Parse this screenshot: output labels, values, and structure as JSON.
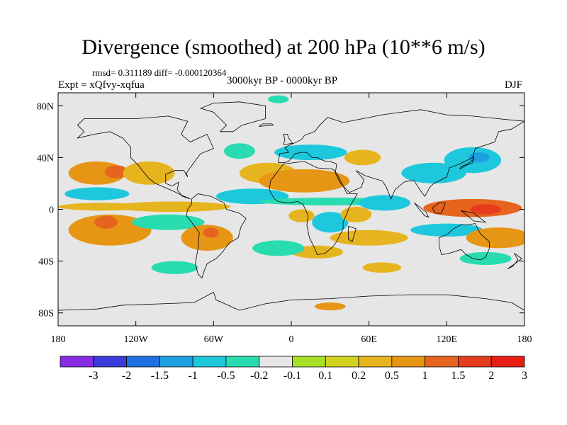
{
  "header": {
    "title": "Divergence (smoothed) at 200 hPa (10**6 m/s)",
    "stats": "rmsd= 0.311189 diff= -0.000120364",
    "experiment": "Expt = xQfvy-xqfua",
    "period": "3000kyr BP - 0000kyr BP",
    "season": "DJF"
  },
  "chart_data": {
    "type": "heatmap",
    "title": "Divergence (smoothed) at 200 hPa (10**6 m/s)",
    "variable": "Divergence (smoothed) at 200 hPa",
    "units": "10**6 m/s",
    "projection": "cylindrical equidistant",
    "xlim": [
      -180,
      180
    ],
    "ylim": [
      -90,
      90
    ],
    "x_ticks": [
      {
        "value": -180,
        "label": "180"
      },
      {
        "value": -120,
        "label": "120W"
      },
      {
        "value": -60,
        "label": "60W"
      },
      {
        "value": 0,
        "label": "0"
      },
      {
        "value": 60,
        "label": "60E"
      },
      {
        "value": 120,
        "label": "120E"
      },
      {
        "value": 180,
        "label": "180"
      }
    ],
    "y_ticks": [
      {
        "value": 80,
        "label": "80N"
      },
      {
        "value": 40,
        "label": "40N"
      },
      {
        "value": 0,
        "label": "0"
      },
      {
        "value": -40,
        "label": "40S"
      },
      {
        "value": -80,
        "label": "80S"
      }
    ],
    "levels": [
      -3,
      -2,
      -1.5,
      -1,
      -0.5,
      -0.2,
      -0.1,
      0.1,
      0.2,
      0.5,
      1,
      1.5,
      2,
      3
    ],
    "colors": [
      "#8a2be6",
      "#3b3bdc",
      "#1e6fe0",
      "#1ea0e0",
      "#1ec8dc",
      "#28dcb0",
      "#e6e6e6",
      "#a8e028",
      "#d2d21e",
      "#e6b41e",
      "#e69614",
      "#e6641e",
      "#e63c1e",
      "#e61e14"
    ],
    "blobs": [
      {
        "lon": -150,
        "lat": 28,
        "rlon": 22,
        "rlat": 9,
        "value": 0.6
      },
      {
        "lon": -135,
        "lat": 29,
        "rlon": 9,
        "rlat": 5,
        "value": 1.0
      },
      {
        "lon": -110,
        "lat": 28,
        "rlon": 20,
        "rlat": 9,
        "value": 0.3
      },
      {
        "lon": -150,
        "lat": 12,
        "rlon": 25,
        "rlat": 5,
        "value": -0.6
      },
      {
        "lon": -140,
        "lat": -16,
        "rlon": 32,
        "rlat": 12,
        "value": 0.5
      },
      {
        "lon": -143,
        "lat": -10,
        "rlon": 9,
        "rlat": 5,
        "value": 1.2
      },
      {
        "lon": -92,
        "lat": 2,
        "rlon": 45,
        "rlat": 4,
        "value": 0.3
      },
      {
        "lon": -145,
        "lat": 2,
        "rlon": 35,
        "rlat": 3,
        "value": 0.25
      },
      {
        "lon": -95,
        "lat": -10,
        "rlon": 28,
        "rlat": 6,
        "value": -0.5
      },
      {
        "lon": -65,
        "lat": -22,
        "rlon": 20,
        "rlat": 10,
        "value": 0.5
      },
      {
        "lon": -62,
        "lat": -18,
        "rlon": 6,
        "rlat": 4,
        "value": 1.0
      },
      {
        "lon": -30,
        "lat": 10,
        "rlon": 28,
        "rlat": 6,
        "value": -0.6
      },
      {
        "lon": -18,
        "lat": 28,
        "rlon": 22,
        "rlat": 8,
        "value": 0.4
      },
      {
        "lon": 10,
        "lat": 22,
        "rlon": 35,
        "rlat": 9,
        "value": 0.5
      },
      {
        "lon": -40,
        "lat": 45,
        "rlon": 12,
        "rlat": 6,
        "value": -0.5
      },
      {
        "lon": 15,
        "lat": 44,
        "rlon": 28,
        "rlat": 6,
        "value": -0.6
      },
      {
        "lon": 55,
        "lat": 40,
        "rlon": 14,
        "rlat": 6,
        "value": 0.3
      },
      {
        "lon": 30,
        "lat": 6,
        "rlon": 55,
        "rlat": 3,
        "value": -0.5
      },
      {
        "lon": 8,
        "lat": -5,
        "rlon": 10,
        "rlat": 5,
        "value": 0.4
      },
      {
        "lon": 30,
        "lat": -10,
        "rlon": 14,
        "rlat": 8,
        "value": -0.6
      },
      {
        "lon": 50,
        "lat": -4,
        "rlon": 12,
        "rlat": 6,
        "value": 0.3
      },
      {
        "lon": 72,
        "lat": 5,
        "rlon": 20,
        "rlat": 6,
        "value": -0.8
      },
      {
        "lon": 110,
        "lat": 28,
        "rlon": 25,
        "rlat": 8,
        "value": -0.7
      },
      {
        "lon": 140,
        "lat": 38,
        "rlon": 22,
        "rlat": 10,
        "value": -0.9
      },
      {
        "lon": 145,
        "lat": 40,
        "rlon": 8,
        "rlat": 4,
        "value": -1.2
      },
      {
        "lon": 140,
        "lat": 1,
        "rlon": 38,
        "rlat": 7,
        "value": 1.0
      },
      {
        "lon": 150,
        "lat": 0,
        "rlon": 12,
        "rlat": 4,
        "value": 1.5
      },
      {
        "lon": 120,
        "lat": -16,
        "rlon": 28,
        "rlat": 5,
        "value": -0.8
      },
      {
        "lon": 160,
        "lat": -22,
        "rlon": 25,
        "rlat": 8,
        "value": 0.5
      },
      {
        "lon": 60,
        "lat": -22,
        "rlon": 30,
        "rlat": 6,
        "value": 0.3
      },
      {
        "lon": 20,
        "lat": -33,
        "rlon": 20,
        "rlat": 5,
        "value": 0.4
      },
      {
        "lon": -10,
        "lat": -30,
        "rlon": 20,
        "rlat": 6,
        "value": -0.5
      },
      {
        "lon": -90,
        "lat": -45,
        "rlon": 18,
        "rlat": 5,
        "value": -0.4
      },
      {
        "lon": 70,
        "lat": -45,
        "rlon": 15,
        "rlat": 4,
        "value": 0.3
      },
      {
        "lon": 150,
        "lat": -38,
        "rlon": 20,
        "rlat": 5,
        "value": -0.4
      },
      {
        "lon": -10,
        "lat": 85,
        "rlon": 8,
        "rlat": 3,
        "value": -0.4
      },
      {
        "lon": 30,
        "lat": -75,
        "rlon": 12,
        "rlat": 3,
        "value": 0.6
      }
    ],
    "coastlines": [
      [
        [
          -165,
          65
        ],
        [
          -160,
          70
        ],
        [
          -140,
          70
        ],
        [
          -120,
          70
        ],
        [
          -95,
          72
        ],
        [
          -80,
          68
        ],
        [
          -85,
          58
        ],
        [
          -78,
          52
        ],
        [
          -65,
          58
        ],
        [
          -60,
          47
        ],
        [
          -70,
          43
        ],
        [
          -76,
          35
        ],
        [
          -81,
          28
        ],
        [
          -80,
          25
        ],
        [
          -83,
          30
        ],
        [
          -90,
          30
        ],
        [
          -97,
          27
        ],
        [
          -97,
          20
        ],
        [
          -92,
          18
        ],
        [
          -87,
          21
        ],
        [
          -88,
          15
        ],
        [
          -84,
          10
        ],
        [
          -78,
          8
        ],
        [
          -80,
          9
        ],
        [
          -85,
          11
        ],
        [
          -91,
          14
        ],
        [
          -105,
          20
        ],
        [
          -110,
          24
        ],
        [
          -115,
          30
        ],
        [
          -118,
          34
        ],
        [
          -124,
          40
        ],
        [
          -124,
          48
        ],
        [
          -130,
          55
        ],
        [
          -140,
          60
        ],
        [
          -152,
          58
        ],
        [
          -165,
          55
        ],
        [
          -160,
          60
        ],
        [
          -165,
          65
        ]
      ],
      [
        [
          -77,
          8
        ],
        [
          -72,
          12
        ],
        [
          -62,
          10
        ],
        [
          -52,
          5
        ],
        [
          -50,
          0
        ],
        [
          -40,
          -3
        ],
        [
          -35,
          -7
        ],
        [
          -39,
          -14
        ],
        [
          -41,
          -22
        ],
        [
          -48,
          -26
        ],
        [
          -53,
          -33
        ],
        [
          -58,
          -38
        ],
        [
          -65,
          -42
        ],
        [
          -67,
          -47
        ],
        [
          -69,
          -53
        ],
        [
          -72,
          -50
        ],
        [
          -74,
          -42
        ],
        [
          -72,
          -30
        ],
        [
          -71,
          -18
        ],
        [
          -77,
          -10
        ],
        [
          -81,
          -5
        ],
        [
          -80,
          0
        ],
        [
          -77,
          4
        ],
        [
          -77,
          8
        ]
      ],
      [
        [
          -17,
          15
        ],
        [
          -16,
          22
        ],
        [
          -10,
          30
        ],
        [
          -6,
          35
        ],
        [
          10,
          37
        ],
        [
          20,
          32
        ],
        [
          32,
          31
        ],
        [
          35,
          28
        ],
        [
          43,
          12
        ],
        [
          51,
          12
        ],
        [
          45,
          2
        ],
        [
          40,
          -10
        ],
        [
          40,
          -15
        ],
        [
          35,
          -25
        ],
        [
          32,
          -29
        ],
        [
          26,
          -34
        ],
        [
          20,
          -35
        ],
        [
          18,
          -30
        ],
        [
          14,
          -22
        ],
        [
          12,
          -12
        ],
        [
          13,
          -5
        ],
        [
          9,
          4
        ],
        [
          5,
          6
        ],
        [
          -3,
          5
        ],
        [
          -10,
          6
        ],
        [
          -13,
          8
        ],
        [
          -17,
          15
        ]
      ],
      [
        [
          -10,
          36
        ],
        [
          -9,
          43
        ],
        [
          -2,
          44
        ],
        [
          -5,
          48
        ],
        [
          2,
          51
        ],
        [
          8,
          54
        ],
        [
          10,
          57
        ],
        [
          18,
          60
        ],
        [
          22,
          65
        ],
        [
          28,
          71
        ],
        [
          40,
          67
        ],
        [
          55,
          70
        ],
        [
          70,
          73
        ],
        [
          85,
          75
        ],
        [
          100,
          77
        ],
        [
          120,
          73
        ],
        [
          140,
          72
        ],
        [
          160,
          70
        ],
        [
          180,
          68
        ],
        [
          170,
          62
        ],
        [
          160,
          60
        ],
        [
          157,
          52
        ],
        [
          142,
          47
        ],
        [
          140,
          40
        ],
        [
          130,
          35
        ],
        [
          122,
          32
        ],
        [
          120,
          25
        ],
        [
          110,
          20
        ],
        [
          107,
          17
        ],
        [
          103,
          10
        ],
        [
          100,
          14
        ],
        [
          98,
          17
        ],
        [
          95,
          22
        ],
        [
          91,
          22
        ],
        [
          87,
          21
        ],
        [
          80,
          15
        ],
        [
          77,
          8
        ],
        [
          73,
          18
        ],
        [
          70,
          22
        ],
        [
          60,
          25
        ],
        [
          57,
          26
        ],
        [
          50,
          30
        ],
        [
          56,
          23
        ],
        [
          54,
          17
        ],
        [
          45,
          13
        ],
        [
          43,
          15
        ],
        [
          38,
          20
        ],
        [
          34,
          28
        ],
        [
          35,
          35
        ],
        [
          30,
          37
        ],
        [
          27,
          37
        ],
        [
          24,
          38
        ],
        [
          20,
          40
        ],
        [
          16,
          40
        ],
        [
          12,
          44
        ],
        [
          8,
          44
        ],
        [
          3,
          43
        ],
        [
          -2,
          37
        ],
        [
          -6,
          36
        ],
        [
          -10,
          36
        ]
      ],
      [
        [
          114,
          -22
        ],
        [
          114,
          -28
        ],
        [
          116,
          -35
        ],
        [
          122,
          -34
        ],
        [
          131,
          -31
        ],
        [
          135,
          -35
        ],
        [
          140,
          -38
        ],
        [
          146,
          -39
        ],
        [
          150,
          -37
        ],
        [
          153,
          -30
        ],
        [
          153,
          -25
        ],
        [
          146,
          -19
        ],
        [
          142,
          -11
        ],
        [
          136,
          -12
        ],
        [
          131,
          -12
        ],
        [
          125,
          -15
        ],
        [
          121,
          -19
        ],
        [
          114,
          -22
        ]
      ],
      [
        [
          -55,
          60
        ],
        [
          -45,
          60
        ],
        [
          -38,
          65
        ],
        [
          -20,
          70
        ],
        [
          -20,
          80
        ],
        [
          -40,
          83
        ],
        [
          -60,
          82
        ],
        [
          -70,
          78
        ],
        [
          -60,
          75
        ],
        [
          -55,
          70
        ],
        [
          -50,
          65
        ],
        [
          -55,
          60
        ]
      ],
      [
        [
          -6,
          50
        ],
        [
          1,
          51
        ],
        [
          -2,
          55
        ],
        [
          -3,
          58
        ],
        [
          -6,
          58
        ],
        [
          -5,
          54
        ],
        [
          -6,
          50
        ]
      ],
      [
        [
          130,
          31
        ],
        [
          135,
          34
        ],
        [
          140,
          36
        ],
        [
          141,
          41
        ],
        [
          140,
          38
        ],
        [
          136,
          35
        ],
        [
          131,
          33
        ],
        [
          130,
          31
        ]
      ],
      [
        [
          95,
          5
        ],
        [
          104,
          -2
        ],
        [
          106,
          -6
        ],
        [
          103,
          -5
        ],
        [
          98,
          1
        ],
        [
          95,
          5
        ]
      ],
      [
        [
          109,
          1
        ],
        [
          114,
          5
        ],
        [
          119,
          5
        ],
        [
          117,
          0
        ],
        [
          116,
          -3
        ],
        [
          111,
          -3
        ],
        [
          109,
          1
        ]
      ],
      [
        [
          131,
          -1
        ],
        [
          141,
          -3
        ],
        [
          150,
          -10
        ],
        [
          141,
          -9
        ],
        [
          136,
          -5
        ],
        [
          131,
          -1
        ]
      ],
      [
        [
          172,
          -34
        ],
        [
          178,
          -38
        ],
        [
          174,
          -41
        ],
        [
          167,
          -46
        ],
        [
          171,
          -44
        ],
        [
          175,
          -39
        ],
        [
          172,
          -34
        ]
      ],
      [
        [
          44,
          -13
        ],
        [
          50,
          -15
        ],
        [
          47,
          -25
        ],
        [
          44,
          -23
        ],
        [
          44,
          -13
        ]
      ],
      [
        [
          -25,
          64
        ],
        [
          -14,
          65
        ],
        [
          -15,
          66
        ],
        [
          -22,
          66
        ],
        [
          -25,
          64
        ]
      ],
      [
        [
          -180,
          -78
        ],
        [
          -150,
          -77
        ],
        [
          -130,
          -74
        ],
        [
          -100,
          -73
        ],
        [
          -75,
          -72
        ],
        [
          -60,
          -64
        ],
        [
          -58,
          -70
        ],
        [
          -40,
          -78
        ],
        [
          -20,
          -73
        ],
        [
          0,
          -70
        ],
        [
          30,
          -69
        ],
        [
          60,
          -67
        ],
        [
          90,
          -66
        ],
        [
          120,
          -66
        ],
        [
          150,
          -69
        ],
        [
          170,
          -72
        ],
        [
          180,
          -78
        ]
      ]
    ],
    "colorbar": {
      "labels": [
        "-3",
        "-2",
        "-1.5",
        "-1",
        "-0.5",
        "-0.2",
        "-0.1",
        "0.1",
        "0.2",
        "0.5",
        "1",
        "1.5",
        "2",
        "3"
      ]
    }
  }
}
